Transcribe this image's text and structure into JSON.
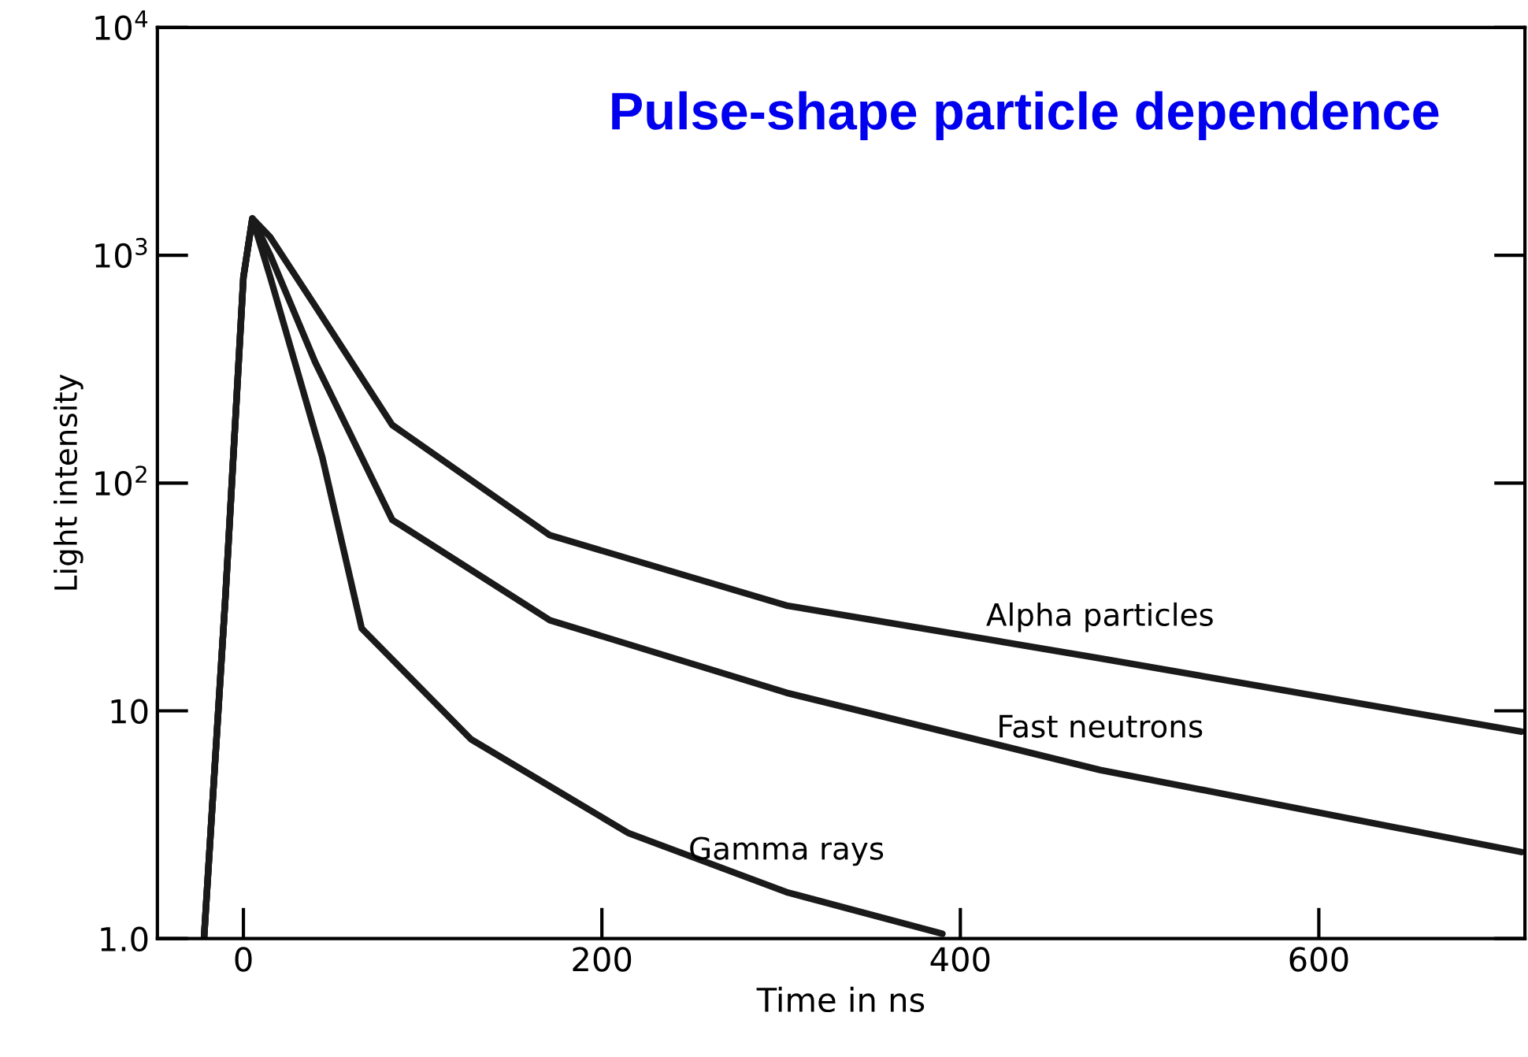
{
  "chart_data": {
    "type": "line",
    "title": "Pulse-shape particle dependence",
    "xlabel": "Time in ns",
    "ylabel": "Light intensity",
    "log": "y",
    "xlim": [
      -48,
      715
    ],
    "xticks": [
      0,
      200,
      400,
      600
    ],
    "ylim": [
      1,
      10000
    ],
    "yticks": [
      {
        "value": 1,
        "label": "1.0"
      },
      10,
      {
        "value": 100,
        "label": "10$^{2}$"
      },
      {
        "value": 1000,
        "label": "10$^{3}$"
      },
      {
        "value": 10000,
        "label": "10$^{4}$"
      }
    ],
    "grid": false,
    "legend": false,
    "marker": "none",
    "line_style": "solid",
    "series": [
      {
        "name": "Alpha particles",
        "color": "#1a1a1a",
        "x": [
          -22,
          -10,
          0,
          5,
          15,
          40,
          83,
          171,
          303,
          478,
          713
        ],
        "values": [
          1,
          32,
          800,
          1450,
          1200,
          600,
          180,
          59,
          29,
          17,
          8.1
        ]
      },
      {
        "name": "Fast neutrons",
        "color": "#1a1a1a",
        "x": [
          -22,
          -10,
          0,
          5,
          15,
          40,
          83,
          171,
          303,
          478,
          713
        ],
        "values": [
          1,
          32,
          800,
          1450,
          1000,
          340,
          69,
          25,
          12,
          5.5,
          2.4
        ]
      },
      {
        "name": "Gamma rays",
        "color": "#1a1a1a",
        "x": [
          -22,
          -10,
          0,
          5,
          15,
          44,
          66,
          127,
          215,
          303,
          390
        ],
        "values": [
          1,
          32,
          800,
          1450,
          800,
          130,
          23,
          7.5,
          2.9,
          1.6,
          1.05
        ]
      }
    ]
  }
}
